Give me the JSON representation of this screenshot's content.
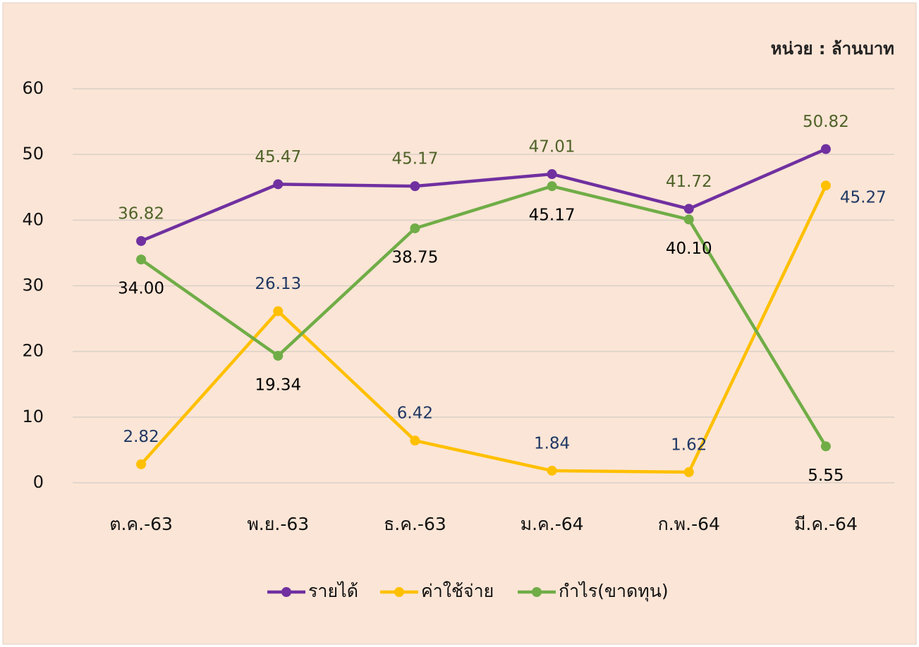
{
  "chart_data": {
    "type": "line",
    "subtitle": "หน่วย : ล้านบาท",
    "categories": [
      "ต.ค.-63",
      "พ.ย.-63",
      "ธ.ค.-63",
      "ม.ค.-64",
      "ก.พ.-64",
      "มี.ค.-64"
    ],
    "series": [
      {
        "name": "รายได้",
        "color": "#7030a0",
        "label_color": "#4f6228",
        "label_position": "above",
        "values": [
          36.82,
          45.47,
          45.17,
          47.01,
          41.72,
          50.82
        ],
        "value_labels": [
          "36.82",
          "45.47",
          "45.17",
          "47.01",
          "41.72",
          "50.82"
        ]
      },
      {
        "name": "ค่าใช้จ่าย",
        "color": "#ffc000",
        "label_color": "#1f3864",
        "label_position": "above",
        "values": [
          2.82,
          26.13,
          6.42,
          1.84,
          1.62,
          45.27
        ],
        "value_labels": [
          "2.82",
          "26.13",
          "6.42",
          "1.84",
          "1.62",
          "45.27"
        ]
      },
      {
        "name": "กำไร(ขาดทุน)",
        "color": "#70ad47",
        "label_color": "#000000",
        "label_position": "below",
        "values": [
          34.0,
          19.34,
          38.75,
          45.17,
          40.1,
          5.55
        ],
        "value_labels": [
          "34.00",
          "19.34",
          "38.75",
          "45.17",
          "40.10",
          "5.55"
        ]
      }
    ],
    "ylim": [
      0,
      60
    ],
    "yticks": [
      0,
      10,
      20,
      30,
      40,
      50,
      60
    ],
    "grid": true,
    "legend": "bottom"
  }
}
